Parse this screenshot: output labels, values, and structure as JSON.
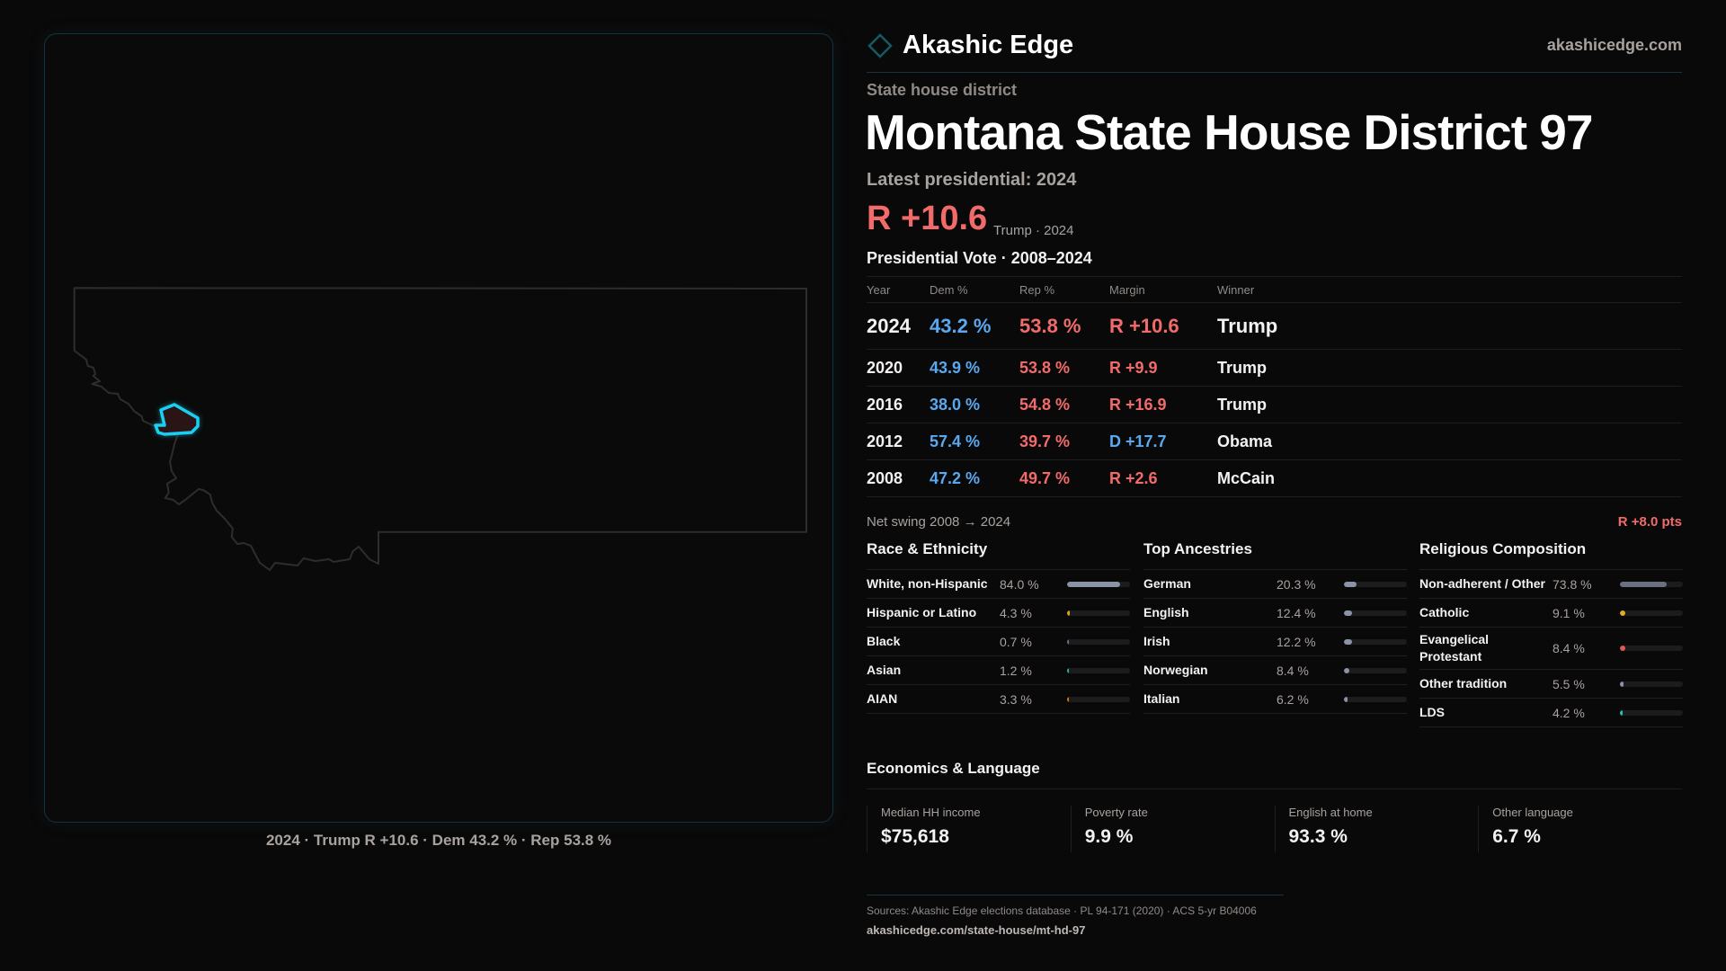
{
  "brand": {
    "name": "Akashic Edge",
    "site": "akashicedge.com",
    "logo_icon": "diamond-icon"
  },
  "header": {
    "kind": "State house district",
    "title": "Montana State House District 97",
    "latest": "Latest presidential: 2024",
    "margin": "R +10.6",
    "margin_sub": "Trump · 2024"
  },
  "map": {
    "caption": "2024 · Trump R +10.6 · Dem 43.2 % · Rep 53.8 %",
    "highlight_color": "#1ad0f0"
  },
  "colors": {
    "dem": "#5aa9f0",
    "rep": "#f26b6b"
  },
  "vote": {
    "title": "Presidential Vote · 2008–2024",
    "headers": [
      "Year",
      "Dem %",
      "Rep %",
      "Margin",
      "Winner"
    ],
    "rows": [
      {
        "year": "2024",
        "dem": "43.2 %",
        "rep": "53.8 %",
        "margin": "R +10.6",
        "party": "R",
        "winner": "Trump"
      },
      {
        "year": "2020",
        "dem": "43.9 %",
        "rep": "53.8 %",
        "margin": "R +9.9",
        "party": "R",
        "winner": "Trump"
      },
      {
        "year": "2016",
        "dem": "38.0 %",
        "rep": "54.8 %",
        "margin": "R +16.9",
        "party": "R",
        "winner": "Trump"
      },
      {
        "year": "2012",
        "dem": "57.4 %",
        "rep": "39.7 %",
        "margin": "D +17.7",
        "party": "D",
        "winner": "Obama"
      },
      {
        "year": "2008",
        "dem": "47.2 %",
        "rep": "49.7 %",
        "margin": "R +2.6",
        "party": "R",
        "winner": "McCain"
      }
    ]
  },
  "swing": {
    "label": "Net swing 2008 → 2024",
    "value": "R +8.0 pts"
  },
  "sections": [
    {
      "title": "Race & Ethnicity",
      "rows": [
        {
          "label": "White, non-Hispanic",
          "value": "84.0 %",
          "pct": 84.0,
          "color": "#8a94a6"
        },
        {
          "label": "Hispanic or Latino",
          "value": "4.3 %",
          "pct": 4.3,
          "color": "#e0a020"
        },
        {
          "label": "Black",
          "value": "0.7 %",
          "pct": 0.7,
          "color": "#6b7280"
        },
        {
          "label": "Asian",
          "value": "1.2 %",
          "pct": 1.2,
          "color": "#2bb39a"
        },
        {
          "label": "AIAN",
          "value": "3.3 %",
          "pct": 3.3,
          "color": "#d07a1a"
        }
      ]
    },
    {
      "title": "Top Ancestries",
      "rows": [
        {
          "label": "German",
          "value": "20.3 %",
          "pct": 20.3,
          "color": "#8a94a6"
        },
        {
          "label": "English",
          "value": "12.4 %",
          "pct": 12.4,
          "color": "#8a94a6"
        },
        {
          "label": "Irish",
          "value": "12.2 %",
          "pct": 12.2,
          "color": "#8a94a6"
        },
        {
          "label": "Norwegian",
          "value": "8.4 %",
          "pct": 8.4,
          "color": "#8a94a6"
        },
        {
          "label": "Italian",
          "value": "6.2 %",
          "pct": 6.2,
          "color": "#8a94a6"
        }
      ]
    },
    {
      "title": "Religious Composition",
      "rows": [
        {
          "label": "Non-adherent / Other",
          "value": "73.8 %",
          "pct": 73.8,
          "color": "#6b7080"
        },
        {
          "label": "Catholic",
          "value": "9.1 %",
          "pct": 9.1,
          "color": "#e0b020"
        },
        {
          "label": "Evangelical Protestant",
          "value": "8.4 %",
          "pct": 8.4,
          "color": "#e05a5a"
        },
        {
          "label": "Other tradition",
          "value": "5.5 %",
          "pct": 5.5,
          "color": "#8a94a6"
        },
        {
          "label": "LDS",
          "value": "4.2 %",
          "pct": 4.2,
          "color": "#2bc0b0"
        }
      ]
    }
  ],
  "economics": {
    "title": "Economics & Language",
    "cards": [
      {
        "label": "Median HH income",
        "value": "$75,618"
      },
      {
        "label": "Poverty rate",
        "value": "9.9 %"
      },
      {
        "label": "English at home",
        "value": "93.3 %"
      },
      {
        "label": "Other language",
        "value": "6.7 %"
      }
    ]
  },
  "footer": {
    "sources": "Sources: Akashic Edge elections database · PL 94-171 (2020) · ACS 5-yr B04006",
    "url": "akashicedge.com/state-house/mt-hd-97"
  }
}
